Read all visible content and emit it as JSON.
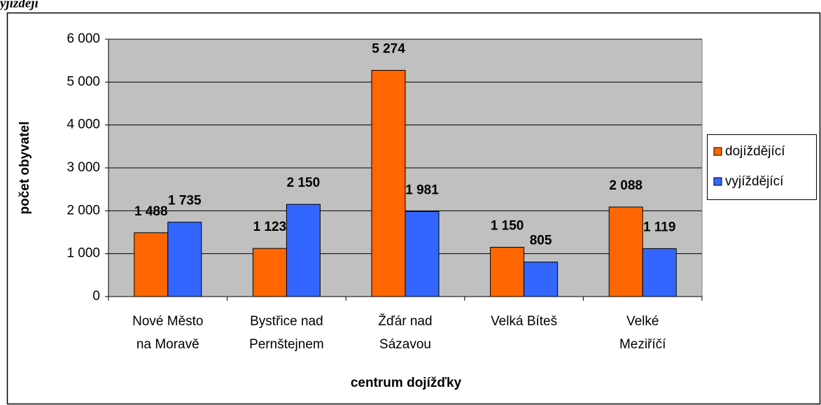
{
  "chart_data": {
    "type": "bar",
    "caption": "yjíždějí",
    "categories": [
      "Nové Město\nna Moravě",
      "Bystřice nad\nPernštejnem",
      "Žďár nad\nSázavou",
      "Velká Bíteš",
      "Velké\nMeziříčí"
    ],
    "series": [
      {
        "name": "dojíždějící",
        "color": "#FF6600",
        "label_color": "#FF6600",
        "values": [
          1488,
          1123,
          5274,
          1150,
          2088
        ],
        "value_labels": [
          "1 488",
          "1 123",
          "5 274",
          "1 150",
          "2 088"
        ]
      },
      {
        "name": "vyjíždějící",
        "color": "#3366FF",
        "label_color": "#3366FF",
        "values": [
          1735,
          2150,
          1981,
          805,
          1119
        ],
        "value_labels": [
          "1 735",
          "2 150",
          "1 981",
          "805",
          "1 119"
        ]
      }
    ],
    "x_label": "centrum dojížďky",
    "y_label": "počet obyvatel",
    "ylim": [
      0,
      6000
    ],
    "yticks": [
      0,
      {
        "value": 1000,
        "label": "1 000"
      },
      {
        "value": 2000,
        "label": "2 000"
      },
      {
        "value": 3000,
        "label": "3 000"
      },
      {
        "value": 4000,
        "label": "4 000"
      },
      {
        "value": 5000,
        "label": "5 000"
      },
      {
        "value": 6000,
        "label": "6 000"
      }
    ],
    "grid": true,
    "plot_background": "#C0C0C0",
    "legend": "right"
  }
}
